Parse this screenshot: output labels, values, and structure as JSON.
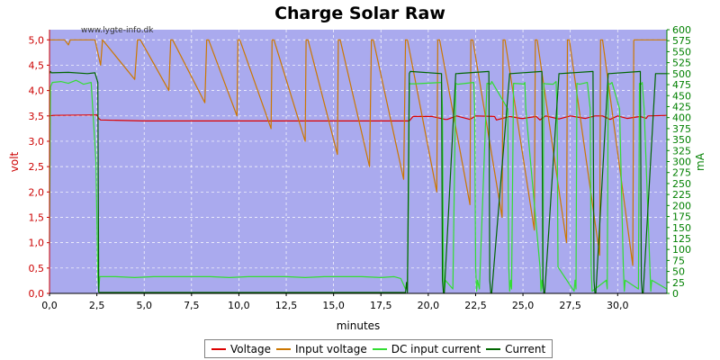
{
  "chart_data": {
    "type": "line",
    "title": "Charge Solar Raw",
    "watermark": "www.lygte-info.dk",
    "xlabel": "minutes",
    "ylabel_left": "volt",
    "ylabel_right": "mA",
    "xlim": [
      0,
      32.6
    ],
    "ylim_left": [
      0,
      5.2
    ],
    "ylim_right": [
      0,
      600
    ],
    "x_ticks": [
      "0,0",
      "2,5",
      "5,0",
      "7,5",
      "10,0",
      "12,5",
      "15,0",
      "17,5",
      "20,0",
      "22,5",
      "25,0",
      "27,5",
      "30,0"
    ],
    "y_left_ticks": [
      "0,0",
      "0,5",
      "1,0",
      "1,5",
      "2,0",
      "2,5",
      "3,0",
      "3,5",
      "4,0",
      "4,5",
      "5,0"
    ],
    "y_right_ticks": [
      "0",
      "25",
      "50",
      "75",
      "100",
      "125",
      "150",
      "175",
      "200",
      "225",
      "250",
      "275",
      "300",
      "325",
      "350",
      "375",
      "400",
      "425",
      "450",
      "475",
      "500",
      "525",
      "550",
      "575",
      "600"
    ],
    "grid": true,
    "background": "#aaaaee",
    "colors": {
      "left_axis": "#cc0000",
      "right_axis": "#008000"
    },
    "series": [
      {
        "name": "Voltage",
        "axis": "left",
        "color": "#dd0000",
        "x": [
          0,
          0.2,
          2.5,
          2.6,
          2.7,
          5.0,
          19.0,
          19.2,
          20.2,
          20.9,
          21.0,
          21.5,
          22.2,
          22.5,
          23.5,
          23.6,
          24.3,
          24.9,
          25.0,
          25.7,
          25.9,
          26.2,
          26.9,
          27.5,
          28.3,
          28.8,
          29.2,
          29.6,
          30.0,
          30.5,
          31.2,
          31.5,
          31.6,
          32.6
        ],
        "y": [
          3.5,
          3.51,
          3.52,
          3.45,
          3.42,
          3.4,
          3.4,
          3.49,
          3.49,
          3.43,
          3.43,
          3.5,
          3.43,
          3.5,
          3.49,
          3.42,
          3.49,
          3.45,
          3.45,
          3.49,
          3.42,
          3.5,
          3.44,
          3.5,
          3.45,
          3.5,
          3.5,
          3.43,
          3.5,
          3.45,
          3.49,
          3.45,
          3.5,
          3.51
        ]
      },
      {
        "name": "Input voltage",
        "axis": "left",
        "color": "#cc7700",
        "x": [
          0,
          0.8,
          1.0,
          1.1,
          2.4,
          2.7,
          2.8,
          4.5,
          4.65,
          4.8,
          6.3,
          6.4,
          6.5,
          8.2,
          8.3,
          8.4,
          9.9,
          9.95,
          10.05,
          11.7,
          11.75,
          11.85,
          13.5,
          13.55,
          13.65,
          15.2,
          15.25,
          15.35,
          16.9,
          17.0,
          17.1,
          18.7,
          18.8,
          18.9,
          20.45,
          20.5,
          20.6,
          22.2,
          22.25,
          22.35,
          23.9,
          23.95,
          24.05,
          25.6,
          25.65,
          25.75,
          27.3,
          27.35,
          27.45,
          29.05,
          29.1,
          29.2,
          30.8,
          30.85,
          30.95,
          32.6
        ],
        "y": [
          5.0,
          5.0,
          4.9,
          5.0,
          5.0,
          4.5,
          5.0,
          4.22,
          5.0,
          5.0,
          4.0,
          5.0,
          5.0,
          3.76,
          5.0,
          5.0,
          3.5,
          5.0,
          5.0,
          3.25,
          5.0,
          5.0,
          3.0,
          5.0,
          5.0,
          2.74,
          5.0,
          5.0,
          2.5,
          5.0,
          5.0,
          2.25,
          5.0,
          5.0,
          2.0,
          5.0,
          5.0,
          1.75,
          5.0,
          5.0,
          1.5,
          5.0,
          5.0,
          1.25,
          5.0,
          5.0,
          1.0,
          5.0,
          5.0,
          0.75,
          5.0,
          5.0,
          0.55,
          5.0,
          5.0,
          5.0
        ]
      },
      {
        "name": "DC input current",
        "axis": "right",
        "color": "#33dd33",
        "x": [
          0,
          0.05,
          0.15,
          0.6,
          1.0,
          1.4,
          1.8,
          2.2,
          2.45,
          2.55,
          2.6,
          2.65,
          3.5,
          4.5,
          5.5,
          6.5,
          7.5,
          8.5,
          9.5,
          10.5,
          11.5,
          12.5,
          13.5,
          14.5,
          15.5,
          16.5,
          17.5,
          18.2,
          18.55,
          18.8,
          18.9,
          18.95,
          19.0,
          19.05,
          19.3,
          20.7,
          20.75,
          20.8,
          20.85,
          20.9,
          21.3,
          21.45,
          21.5,
          21.55,
          22.4,
          22.45,
          22.5,
          22.55,
          22.6,
          22.7,
          23.1,
          23.25,
          23.3,
          23.35,
          24.2,
          24.25,
          24.3,
          24.35,
          24.4,
          24.5,
          24.9,
          25.05,
          25.1,
          25.15,
          25.9,
          25.95,
          26.0,
          26.05,
          26.1,
          26.2,
          26.6,
          26.75,
          26.8,
          26.85,
          27.7,
          27.75,
          27.8,
          27.85,
          27.9,
          28.0,
          28.4,
          28.55,
          28.6,
          28.65,
          29.4,
          29.45,
          29.5,
          29.55,
          29.6,
          29.7,
          30.1,
          30.3,
          30.35,
          30.4,
          31.1,
          31.15,
          31.2,
          31.25,
          31.3,
          31.4,
          31.7,
          31.75,
          31.8,
          32.6
        ],
        "y": [
          110,
          470,
          480,
          482,
          478,
          485,
          476,
          480,
          300,
          40,
          5,
          38,
          38,
          36,
          38,
          38,
          38,
          38,
          36,
          38,
          38,
          38,
          36,
          38,
          38,
          38,
          36,
          38,
          34,
          10,
          20,
          200,
          478,
          477,
          477,
          480,
          420,
          60,
          5,
          30,
          10,
          478,
          477,
          476,
          480,
          420,
          60,
          5,
          30,
          10,
          478,
          477,
          476,
          482,
          420,
          60,
          5,
          30,
          10,
          478,
          477,
          476,
          480,
          420,
          60,
          5,
          30,
          10,
          478,
          477,
          476,
          482,
          420,
          60,
          5,
          30,
          10,
          478,
          477,
          476,
          480,
          420,
          60,
          5,
          30,
          10,
          478,
          477,
          476,
          480,
          420,
          60,
          5,
          30,
          10,
          478,
          477,
          476,
          480,
          420,
          60,
          5,
          30,
          10
        ]
      },
      {
        "name": "Current",
        "axis": "right",
        "color": "#006600",
        "x": [
          0,
          0.05,
          0.1,
          1.0,
          2.0,
          2.4,
          2.55,
          2.6,
          2.65,
          18.6,
          18.8,
          18.85,
          18.9,
          19.0,
          19.05,
          20.7,
          20.75,
          20.8,
          20.85,
          21.45,
          21.5,
          23.2,
          23.25,
          23.3,
          23.35,
          24.3,
          24.35,
          26.0,
          26.05,
          26.1,
          26.15,
          26.9,
          26.95,
          28.7,
          28.75,
          28.8,
          28.85,
          29.5,
          29.55,
          31.2,
          31.25,
          31.3,
          31.35,
          32.0,
          32.05,
          32.6
        ],
        "y": [
          500,
          505,
          502,
          503,
          500,
          502,
          480,
          3,
          2,
          2,
          2,
          25,
          2,
          500,
          505,
          500,
          30,
          2,
          2,
          500,
          500,
          505,
          30,
          2,
          2,
          500,
          500,
          505,
          30,
          2,
          2,
          500,
          500,
          505,
          30,
          2,
          2,
          500,
          500,
          505,
          30,
          2,
          2,
          500,
          500,
          500
        ]
      }
    ],
    "legend": {
      "placement": "bottom",
      "items": [
        "Voltage",
        "Input voltage",
        "DC input current",
        "Current"
      ]
    }
  }
}
